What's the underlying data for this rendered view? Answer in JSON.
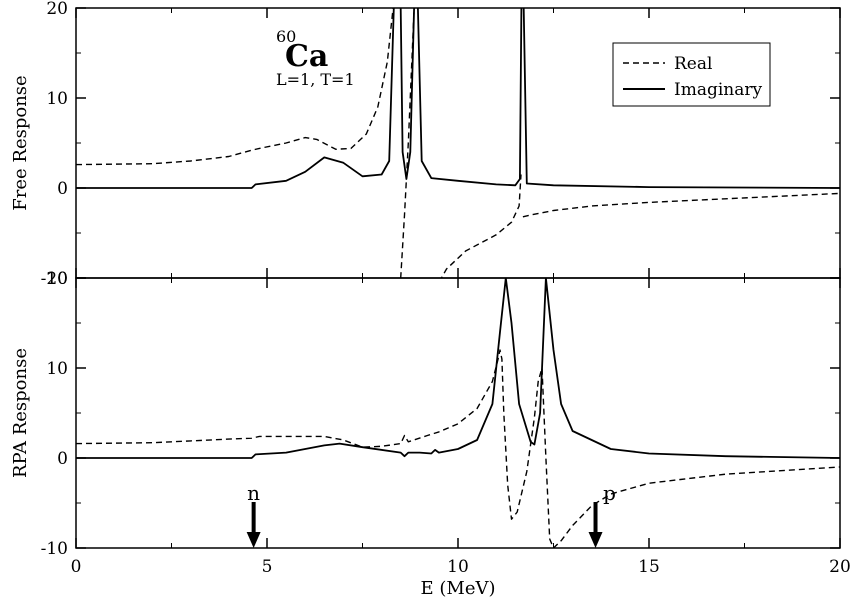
{
  "chart_data": [
    {
      "type": "line",
      "ylabel": "Free Response",
      "xlim": [
        0,
        20
      ],
      "ylim": [
        -15,
        20
      ],
      "yticks": [
        20,
        10,
        0,
        -10
      ],
      "annotation": {
        "isotope_mass": "60",
        "isotope_symbol": "Ca",
        "quantum_numbers": "L=1, T=1"
      },
      "legend": {
        "placement": "top-right"
      },
      "series": [
        {
          "name": "Real",
          "style": "dashed",
          "points": [
            [
              0,
              2.6
            ],
            [
              2,
              2.7
            ],
            [
              3,
              3.0
            ],
            [
              4,
              3.5
            ],
            [
              4.6,
              4.2
            ],
            [
              4.8,
              4.4
            ],
            [
              5.5,
              5.0
            ],
            [
              6.0,
              5.6
            ],
            [
              6.3,
              5.4
            ],
            [
              6.8,
              4.3
            ],
            [
              7.2,
              4.4
            ],
            [
              7.6,
              6.0
            ],
            [
              7.9,
              9.0
            ],
            [
              8.15,
              14.0
            ],
            [
              8.3,
              20
            ],
            null,
            [
              8.35,
              -20
            ],
            [
              8.45,
              -15
            ],
            [
              8.5,
              -10
            ],
            [
              8.6,
              -3
            ],
            [
              8.7,
              5
            ],
            [
              8.8,
              15
            ],
            [
              8.85,
              20
            ],
            null,
            [
              8.95,
              -20
            ],
            [
              9.05,
              -15
            ],
            [
              9.3,
              -12
            ],
            [
              9.7,
              -9
            ],
            [
              10.2,
              -7
            ],
            [
              11.0,
              -5.2
            ],
            [
              11.4,
              -3.8
            ],
            [
              11.6,
              -2
            ],
            [
              11.65,
              1.5
            ],
            null,
            [
              11.7,
              -3.2
            ],
            [
              11.9,
              -3.0
            ],
            [
              12.5,
              -2.5
            ],
            [
              13.5,
              -2.0
            ],
            [
              15,
              -1.6
            ],
            [
              17,
              -1.2
            ],
            [
              20,
              -0.6
            ]
          ]
        },
        {
          "name": "Imaginary",
          "style": "solid",
          "points": [
            [
              0,
              0
            ],
            [
              4.6,
              0
            ],
            [
              4.7,
              0.4
            ],
            [
              5.5,
              0.8
            ],
            [
              6.0,
              1.8
            ],
            [
              6.5,
              3.4
            ],
            [
              7.0,
              2.8
            ],
            [
              7.5,
              1.3
            ],
            [
              8.0,
              1.5
            ],
            [
              8.2,
              3
            ],
            [
              8.32,
              20
            ],
            null,
            [
              8.5,
              20
            ],
            [
              8.55,
              4
            ],
            [
              8.65,
              1.0
            ],
            [
              8.75,
              4
            ],
            [
              8.85,
              20
            ],
            null,
            [
              8.95,
              20
            ],
            [
              9.05,
              3
            ],
            [
              9.3,
              1.1
            ],
            [
              10,
              0.8
            ],
            [
              11,
              0.4
            ],
            [
              11.5,
              0.3
            ],
            [
              11.62,
              1
            ],
            [
              11.66,
              20
            ],
            null,
            [
              11.72,
              20
            ],
            [
              11.8,
              0.5
            ],
            [
              12.5,
              0.3
            ],
            [
              15,
              0.1
            ],
            [
              20,
              0
            ]
          ]
        }
      ]
    },
    {
      "type": "line",
      "ylabel": "RPA Response",
      "xlabel": "E (MeV)",
      "xlim": [
        0,
        20
      ],
      "ylim": [
        -10,
        20
      ],
      "xticks": [
        0,
        5,
        10,
        15,
        20
      ],
      "yticks": [
        20,
        10,
        0,
        -10
      ],
      "arrows": [
        {
          "label": "n",
          "x": 4.65
        },
        {
          "label": "p",
          "x": 13.6
        }
      ],
      "series": [
        {
          "name": "Real",
          "style": "dashed",
          "points": [
            [
              0,
              1.6
            ],
            [
              2,
              1.7
            ],
            [
              3,
              1.9
            ],
            [
              4,
              2.1
            ],
            [
              4.6,
              2.2
            ],
            [
              4.8,
              2.4
            ],
            [
              5.5,
              2.4
            ],
            [
              6.5,
              2.4
            ],
            [
              7.0,
              2.0
            ],
            [
              7.5,
              1.2
            ],
            [
              8.0,
              1.3
            ],
            [
              8.5,
              1.6
            ],
            [
              8.6,
              2.5
            ],
            [
              8.7,
              1.8
            ],
            [
              9.2,
              2.5
            ],
            [
              9.5,
              2.9
            ],
            [
              10,
              3.8
            ],
            [
              10.5,
              5.5
            ],
            [
              10.9,
              8.5
            ],
            [
              11.05,
              11.0
            ],
            [
              11.1,
              12.0
            ],
            [
              11.15,
              11.0
            ],
            [
              11.2,
              5.0
            ],
            [
              11.3,
              -3.0
            ],
            [
              11.4,
              -6.8
            ],
            [
              11.55,
              -6.0
            ],
            [
              11.8,
              -1.5
            ],
            [
              12.0,
              4.5
            ],
            [
              12.1,
              8.5
            ],
            [
              12.2,
              10.0
            ],
            [
              12.3,
              0.0
            ],
            [
              12.4,
              -9.0
            ],
            [
              12.5,
              -10
            ],
            [
              12.7,
              -9.2
            ],
            [
              13.0,
              -7.5
            ],
            [
              13.5,
              -5.3
            ],
            [
              14,
              -4.0
            ],
            [
              15,
              -2.8
            ],
            [
              17,
              -1.8
            ],
            [
              20,
              -1.0
            ]
          ]
        },
        {
          "name": "Imaginary",
          "style": "solid",
          "points": [
            [
              0,
              0
            ],
            [
              4.6,
              0
            ],
            [
              4.7,
              0.4
            ],
            [
              5.5,
              0.6
            ],
            [
              6.5,
              1.4
            ],
            [
              6.9,
              1.6
            ],
            [
              7.5,
              1.2
            ],
            [
              8.5,
              0.6
            ],
            [
              8.6,
              0.2
            ],
            [
              8.7,
              0.6
            ],
            [
              9.0,
              0.6
            ],
            [
              9.3,
              0.5
            ],
            [
              9.4,
              0.9
            ],
            [
              9.5,
              0.6
            ],
            [
              10,
              1.0
            ],
            [
              10.5,
              2.0
            ],
            [
              10.9,
              6.0
            ],
            [
              11.1,
              14.0
            ],
            [
              11.25,
              20
            ],
            [
              11.4,
              15.0
            ],
            [
              11.6,
              6.0
            ],
            [
              11.9,
              1.8
            ],
            [
              12.0,
              1.5
            ],
            [
              12.15,
              5.0
            ],
            [
              12.3,
              20
            ],
            [
              12.5,
              12.0
            ],
            [
              12.7,
              6.0
            ],
            [
              13,
              3.0
            ],
            [
              14,
              1.0
            ],
            [
              15,
              0.5
            ],
            [
              17,
              0.2
            ],
            [
              20,
              0
            ]
          ]
        }
      ]
    }
  ]
}
